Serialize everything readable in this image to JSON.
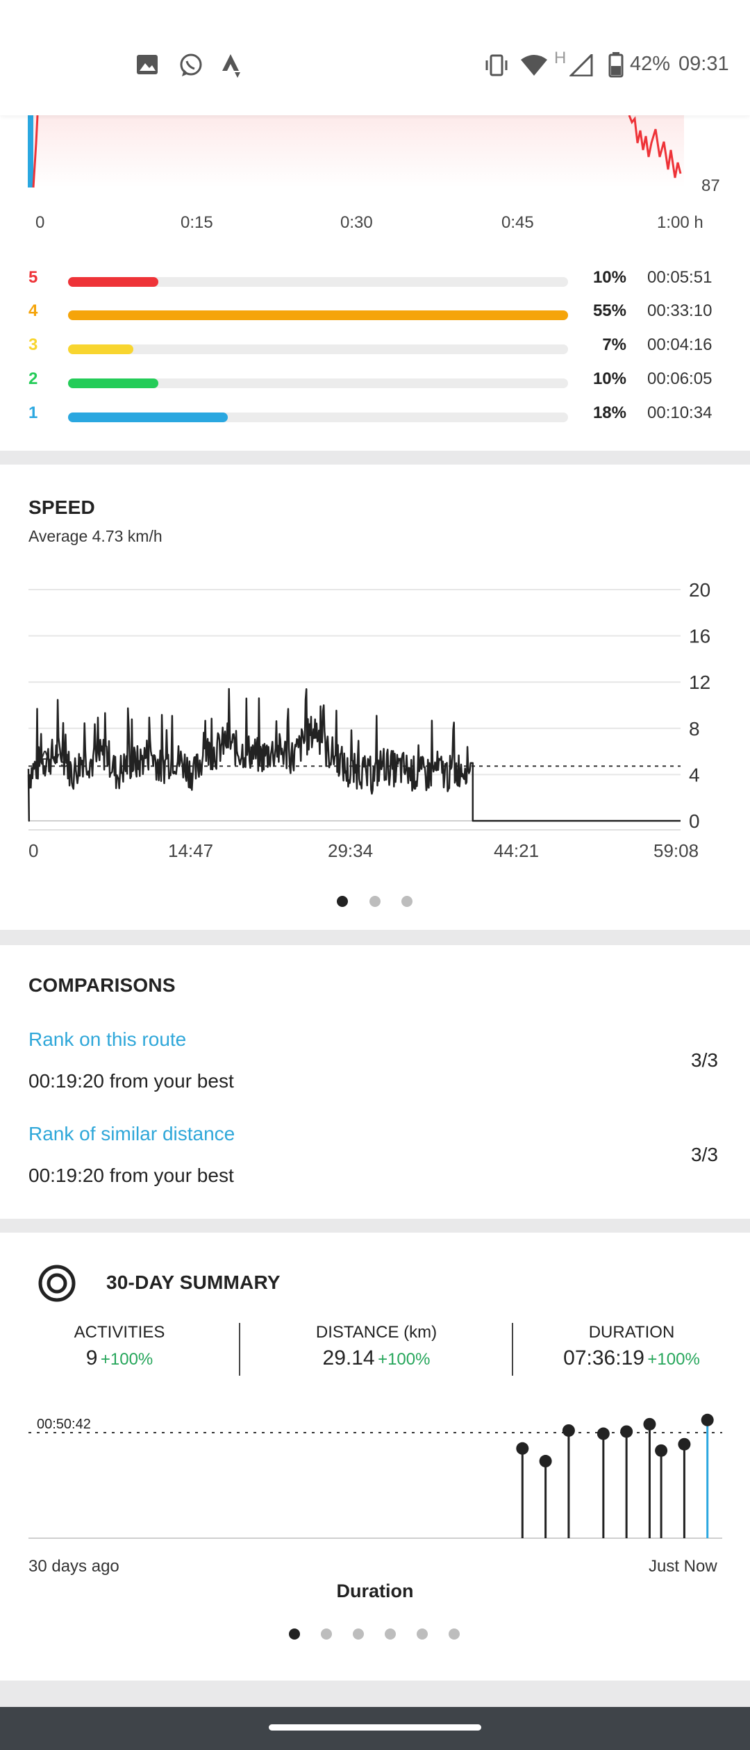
{
  "status_bar": {
    "icons": [
      "image-icon",
      "whatsapp-icon",
      "strava-icon",
      "vibrate-icon",
      "wifi-icon",
      "network-h-icon",
      "signal-icon",
      "battery-icon"
    ],
    "battery": "42%",
    "time": "09:31"
  },
  "hr_chart": {
    "value_label": "87",
    "x_ticks": [
      "0",
      "0:15",
      "0:30",
      "0:45",
      "1:00 h"
    ]
  },
  "zones": [
    {
      "num": "5",
      "pct": "10%",
      "time": "00:05:51",
      "color": "#ee3338",
      "fill": 0.18
    },
    {
      "num": "4",
      "pct": "55%",
      "time": "00:33:10",
      "color": "#f5a40a",
      "fill": 1.0
    },
    {
      "num": "3",
      "pct": "7%",
      "time": "00:04:16",
      "color": "#f8d52f",
      "fill": 0.13
    },
    {
      "num": "2",
      "pct": "10%",
      "time": "00:06:05",
      "color": "#24cc58",
      "fill": 0.18
    },
    {
      "num": "1",
      "pct": "18%",
      "time": "00:10:34",
      "color": "#2aa7e0",
      "fill": 0.32
    }
  ],
  "speed": {
    "title": "SPEED",
    "subtitle": "Average 4.73 km/h",
    "avg_label": "Avg",
    "pager_active": 0
  },
  "chart_data": {
    "type": "line",
    "title": "SPEED",
    "xlabel": "",
    "ylabel": "",
    "x_ticks": [
      "0",
      "14:47",
      "29:34",
      "44:21",
      "59:08"
    ],
    "y_ticks": [
      20,
      16,
      12,
      8,
      4,
      0
    ],
    "ylim": [
      0,
      20
    ],
    "average": 4.73,
    "series": [
      {
        "x": [
          0,
          1,
          2,
          3,
          4,
          5,
          6,
          7,
          8,
          9,
          10,
          11,
          12,
          13,
          14,
          15,
          16,
          17,
          18,
          19,
          20,
          21,
          22,
          23,
          24,
          25,
          26,
          27,
          28,
          29,
          30,
          31,
          32,
          33,
          34,
          35,
          36,
          37,
          38,
          39,
          40,
          40.2,
          41,
          45,
          50,
          55,
          59
        ],
        "values": [
          4,
          5,
          5.5,
          6,
          4,
          5.5,
          5,
          6,
          4,
          5,
          5,
          6,
          4.5,
          5.5,
          5,
          4,
          6,
          6,
          7,
          6,
          6,
          5.5,
          6,
          6,
          5.5,
          7,
          8,
          6,
          5.5,
          4,
          4.5,
          3.5,
          5,
          4.5,
          4.5,
          4,
          4,
          4.5,
          4,
          4.5,
          5,
          0,
          0,
          0,
          0,
          0,
          0
        ]
      }
    ]
  },
  "comparisons": {
    "title": "COMPARISONS",
    "items": [
      {
        "label": "Rank on this route",
        "detail": "00:19:20 from your best",
        "rank": "3/3"
      },
      {
        "label": "Rank of similar distance",
        "detail": "00:19:20 from your best",
        "rank": "3/3"
      }
    ]
  },
  "summary": {
    "title": "30-DAY SUMMARY",
    "stats": [
      {
        "label": "ACTIVITIES",
        "value": "9",
        "delta": "+100%"
      },
      {
        "label": "DISTANCE (km)",
        "value": "29.14",
        "delta": "+100%"
      },
      {
        "label": "DURATION",
        "value": "07:36:19",
        "delta": "+100%"
      }
    ],
    "ref_label": "00:50:42",
    "start_label": "30 days ago",
    "end_label": "Just Now",
    "metric_label": "Duration",
    "pager_count": 6,
    "pager_active": 0,
    "bars": [
      {
        "day": 21,
        "value": 0.85
      },
      {
        "day": 22,
        "value": 0.73
      },
      {
        "day": 23,
        "value": 1.02
      },
      {
        "day": 24.5,
        "value": 0.99
      },
      {
        "day": 25.5,
        "value": 1.01
      },
      {
        "day": 26.5,
        "value": 1.08
      },
      {
        "day": 27,
        "value": 0.83
      },
      {
        "day": 28,
        "value": 0.89
      },
      {
        "day": 29,
        "value": 1.12,
        "highlight": true
      }
    ]
  }
}
